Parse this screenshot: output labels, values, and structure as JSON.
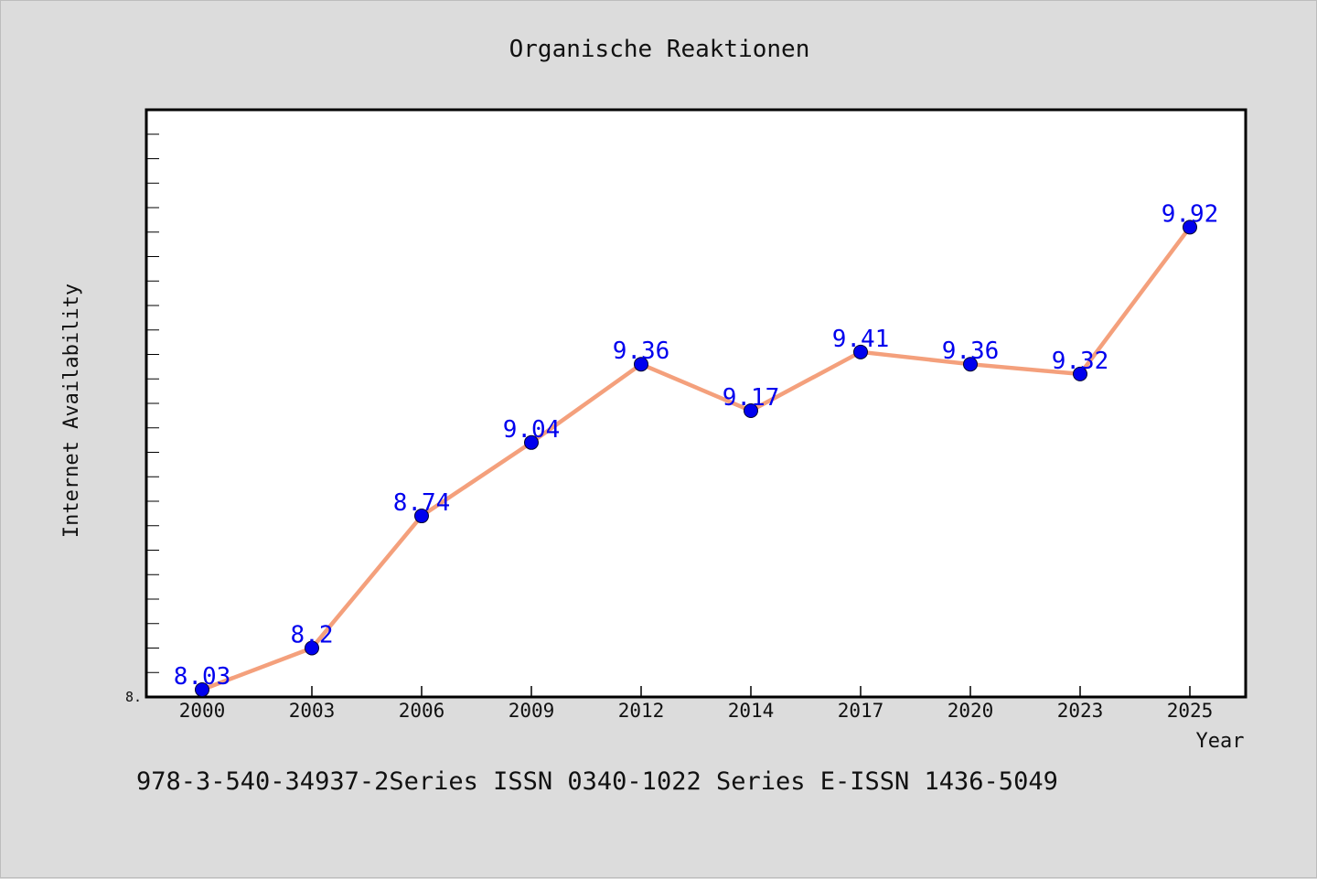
{
  "chart_data": {
    "type": "line",
    "title": "Organische Reaktionen",
    "xlabel": "Year",
    "ylabel": "Internet Availability",
    "categories": [
      "2000",
      "2003",
      "2006",
      "2009",
      "2012",
      "2014",
      "2017",
      "2020",
      "2023",
      "2025"
    ],
    "series": [
      {
        "values": [
          8.03,
          8.2,
          8.74,
          9.04,
          9.36,
          9.17,
          9.41,
          9.36,
          9.32,
          9.92
        ]
      }
    ],
    "data_labels": [
      "8.03",
      "8.2",
      "8.74",
      "9.04",
      "9.36",
      "9.17",
      "9.41",
      "9.36",
      "9.32",
      "9.92"
    ],
    "y_tick_labels": [
      "8."
    ],
    "ylim": [
      8.0,
      10.4
    ],
    "grid": false,
    "line_color": "#f4a07c",
    "marker_color": "#0000ee",
    "label_color": "#0000ee",
    "plot_background": "#ffffff",
    "page_background": "#dcdcdc"
  },
  "footer": {
    "text": "978-3-540-34937-2Series ISSN 0340-1022 Series E-ISSN 1436-5049"
  }
}
